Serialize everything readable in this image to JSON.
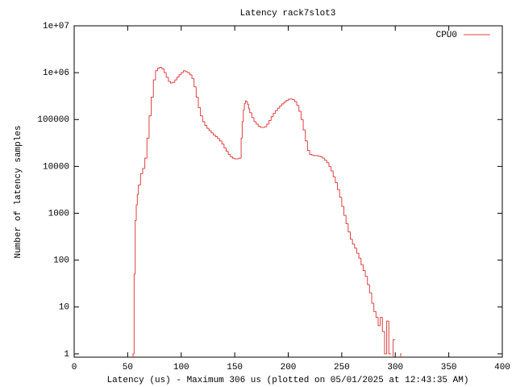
{
  "chart_data": {
    "type": "line",
    "title": "Latency rack7slot3",
    "x_label": "Latency (us) - Maximum 306 us (plotted on 05/01/2025 at 12:43:35 AM)",
    "y_label": "Number of latency samples",
    "log_y": true,
    "step": true,
    "legend": "top-right",
    "xlim": [
      0,
      400
    ],
    "xticks": [
      0,
      50,
      100,
      150,
      200,
      250,
      300,
      350,
      400
    ],
    "ylim": [
      0.85,
      10000000
    ],
    "yticks": [
      1,
      10,
      100,
      1000,
      10000,
      100000,
      {
        "value": 1000000,
        "label": "1e+06"
      },
      {
        "value": 10000000,
        "label": "1e+07"
      }
    ],
    "x": [
      55,
      56,
      57,
      58,
      59,
      60,
      62,
      64,
      66,
      68,
      70,
      72,
      74,
      76,
      78,
      80,
      82,
      84,
      86,
      88,
      90,
      92,
      94,
      96,
      98,
      100,
      102,
      104,
      106,
      108,
      110,
      112,
      114,
      116,
      118,
      120,
      122,
      124,
      126,
      128,
      130,
      132,
      134,
      136,
      138,
      140,
      142,
      144,
      146,
      148,
      150,
      152,
      154,
      156,
      157,
      158,
      159,
      160,
      161,
      162,
      163,
      164,
      166,
      168,
      170,
      172,
      174,
      176,
      178,
      180,
      182,
      184,
      186,
      188,
      190,
      192,
      194,
      196,
      198,
      200,
      202,
      204,
      206,
      208,
      210,
      212,
      214,
      216,
      218,
      220,
      222,
      224,
      226,
      228,
      230,
      232,
      234,
      236,
      238,
      240,
      242,
      244,
      246,
      248,
      250,
      252,
      254,
      256,
      258,
      260,
      262,
      264,
      266,
      268,
      270,
      272,
      274,
      276,
      278,
      280,
      282,
      284,
      286,
      288,
      290,
      292,
      294,
      296,
      298,
      300,
      305
    ],
    "series": [
      {
        "name": "CPU0",
        "color": "#e04040",
        "values": [
          1,
          50,
          700,
          1500,
          2500,
          4000,
          7000,
          9000,
          15000,
          40000,
          120000,
          300000,
          700000,
          1100000,
          1250000,
          1300000,
          1200000,
          1000000,
          800000,
          650000,
          600000,
          620000,
          700000,
          800000,
          900000,
          1000000,
          1100000,
          1050000,
          1000000,
          900000,
          750000,
          500000,
          300000,
          180000,
          120000,
          90000,
          75000,
          65000,
          58000,
          52000,
          47000,
          43000,
          39000,
          35000,
          30000,
          25000,
          21000,
          18000,
          16000,
          15000,
          14500,
          14500,
          15000,
          40000,
          90000,
          160000,
          220000,
          250000,
          240000,
          210000,
          170000,
          140000,
          110000,
          90000,
          80000,
          72000,
          68000,
          68000,
          70000,
          80000,
          95000,
          115000,
          135000,
          155000,
          175000,
          195000,
          215000,
          235000,
          255000,
          270000,
          275000,
          265000,
          240000,
          200000,
          150000,
          100000,
          60000,
          35000,
          22000,
          18000,
          17500,
          17000,
          17000,
          16500,
          16000,
          15000,
          13500,
          12000,
          10000,
          8000,
          6000,
          4500,
          3200,
          2200,
          1400,
          900,
          600,
          400,
          280,
          220,
          180,
          140,
          110,
          80,
          60,
          45,
          30,
          20,
          12,
          8,
          6,
          4,
          6,
          3,
          1,
          5,
          1,
          null,
          2,
          null,
          1
        ]
      }
    ]
  }
}
